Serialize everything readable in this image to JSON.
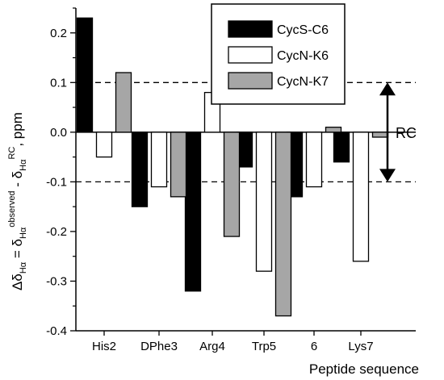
{
  "chart_data": {
    "type": "bar",
    "title": "",
    "categories": [
      "His2",
      "DPhe3",
      "Arg4",
      "Trp5",
      "6",
      "Lys7"
    ],
    "series": [
      {
        "name": "CycS-C6",
        "color": "#000000",
        "values": [
          0.23,
          -0.15,
          -0.32,
          -0.07,
          -0.13,
          -0.06
        ]
      },
      {
        "name": "CycN-K6",
        "color": "#ffffff",
        "values": [
          -0.05,
          -0.11,
          0.08,
          -0.28,
          -0.11,
          -0.26
        ]
      },
      {
        "name": "CycN-K7",
        "color": "#a6a6a6",
        "values": [
          0.12,
          -0.13,
          -0.21,
          -0.37,
          0.01,
          -0.01
        ]
      }
    ],
    "xlabel": "Peptide sequence",
    "ylabel_main": "Δδ",
    "ylabel_parts": {
      "sub": "Hα",
      "observed": "observed",
      "rc": "RC",
      "unit": ", ppm"
    },
    "ylim": [
      -0.4,
      0.25
    ],
    "yticks": [
      "0.2",
      "0.1",
      "0.0",
      "-0.1",
      "-0.2",
      "-0.3",
      "-0.4"
    ],
    "ytick_values": [
      0.2,
      0.1,
      0.0,
      -0.1,
      -0.2,
      -0.3,
      -0.4
    ],
    "reference_lines": [
      0.1,
      -0.1
    ],
    "annotation": {
      "label": "RC",
      "range": [
        -0.1,
        0.1
      ]
    },
    "legend_position": "top-right"
  }
}
